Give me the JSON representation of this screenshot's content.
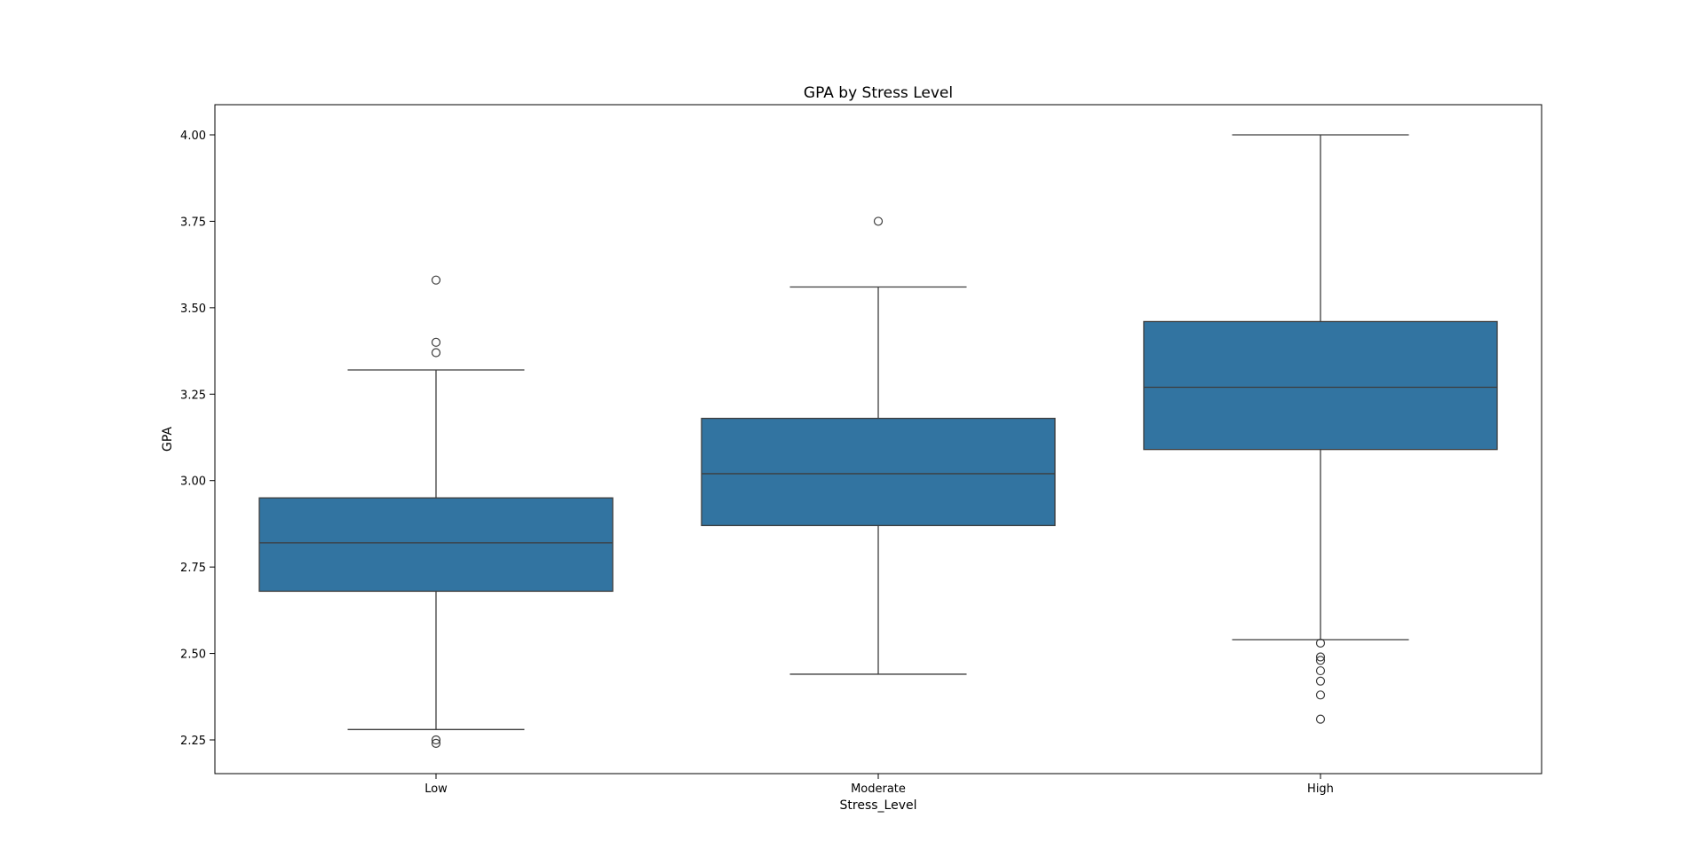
{
  "chart_data": {
    "type": "box",
    "title": "GPA by Stress Level",
    "xlabel": "Stress_Level",
    "ylabel": "GPA",
    "categories": [
      "Low",
      "Moderate",
      "High"
    ],
    "ylim": [
      2.15,
      4.09
    ],
    "yticks": [
      2.25,
      2.5,
      2.75,
      3.0,
      3.25,
      3.5,
      3.75,
      4.0
    ],
    "ytick_labels": [
      "2.25",
      "2.50",
      "2.75",
      "3.00",
      "3.25",
      "3.50",
      "3.75",
      "4.00"
    ],
    "grid": false,
    "legend": "none",
    "box_color": "#3274a1",
    "line_color": "#3d3d3d",
    "boxes": [
      {
        "category": "Low",
        "whisker_low": 2.28,
        "q1": 2.68,
        "median": 2.82,
        "q3": 2.95,
        "whisker_high": 3.32,
        "outliers": [
          3.58,
          3.4,
          3.37,
          2.25,
          2.24
        ]
      },
      {
        "category": "Moderate",
        "whisker_low": 2.44,
        "q1": 2.87,
        "median": 3.02,
        "q3": 3.18,
        "whisker_high": 3.56,
        "outliers": [
          3.75
        ]
      },
      {
        "category": "High",
        "whisker_low": 2.54,
        "q1": 3.09,
        "median": 3.27,
        "q3": 3.46,
        "whisker_high": 4.0,
        "outliers": [
          2.53,
          2.49,
          2.48,
          2.45,
          2.42,
          2.38,
          2.31
        ]
      }
    ]
  }
}
